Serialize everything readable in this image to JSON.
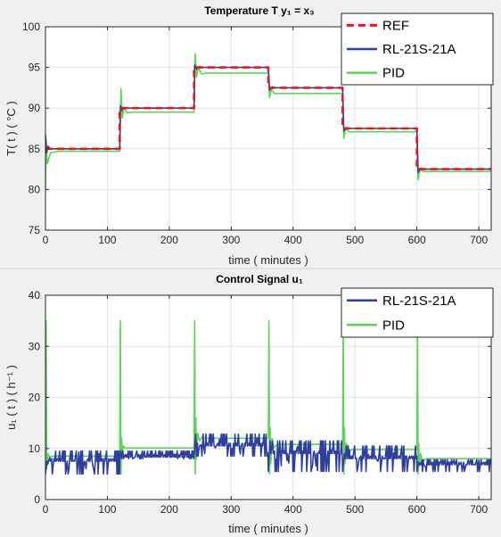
{
  "chart_data": [
    {
      "type": "line",
      "title": "Temperature T  y₁ = x₃",
      "xlabel": "time ( minutes )",
      "ylabel": "T( t ) ( °C )",
      "xlim": [
        0,
        720
      ],
      "ylim": [
        75,
        100
      ],
      "xticks": [
        0,
        100,
        200,
        300,
        400,
        500,
        600,
        700
      ],
      "yticks": [
        75,
        80,
        85,
        90,
        95,
        100
      ],
      "grid": true,
      "legend_position": "top-right",
      "series": [
        {
          "name": "REF",
          "color": "#e8191b",
          "style": "dashed",
          "x": [
            0,
            120,
            120,
            240,
            240,
            360,
            360,
            480,
            480,
            600,
            600,
            720
          ],
          "y": [
            85,
            85,
            90,
            90,
            95,
            95,
            92.5,
            92.5,
            87.5,
            87.5,
            82.5,
            82.5
          ]
        },
        {
          "name": "RL-21S-21A",
          "color": "#2e3f9e",
          "style": "solid",
          "x": [
            0,
            2,
            4,
            8,
            120,
            121,
            123,
            126,
            130,
            240,
            241,
            244,
            248,
            255,
            360,
            362,
            366,
            372,
            480,
            482,
            486,
            492,
            600,
            602,
            606,
            612,
            720
          ],
          "y": [
            86.8,
            84.5,
            85.3,
            85,
            85,
            90.3,
            89.7,
            90.1,
            90,
            90,
            95.3,
            94.8,
            95.1,
            95,
            95,
            92.2,
            92.6,
            92.5,
            92.5,
            87.2,
            87.6,
            87.5,
            87.5,
            82.1,
            82.6,
            82.5,
            82.5
          ]
        },
        {
          "name": "PID",
          "color": "#5dd35a",
          "style": "solid",
          "x": [
            0,
            1,
            3,
            8,
            20,
            120,
            121,
            122,
            124,
            127,
            132,
            140,
            240,
            241,
            242,
            244,
            247,
            252,
            260,
            360,
            361,
            362,
            365,
            370,
            480,
            481,
            482,
            485,
            490,
            600,
            601,
            602,
            605,
            610,
            720
          ],
          "y": [
            80,
            86,
            83.2,
            84.5,
            84.7,
            84.7,
            88,
            92.4,
            88.8,
            90,
            89.4,
            89.5,
            89.5,
            93,
            96.7,
            93.8,
            95,
            94.2,
            94.3,
            94.3,
            93.1,
            91.3,
            92.3,
            91.8,
            91.8,
            88.3,
            86.3,
            87.5,
            87.1,
            87.1,
            82.7,
            81.2,
            82.5,
            82.2,
            82.2
          ]
        }
      ]
    },
    {
      "type": "line",
      "title": "Control Signal u₁",
      "xlabel": "time ( minutes )",
      "ylabel": "u₁ ( t ) ( h⁻¹ )",
      "xlim": [
        0,
        720
      ],
      "ylim": [
        0,
        40
      ],
      "xticks": [
        0,
        100,
        200,
        300,
        400,
        500,
        600,
        700
      ],
      "yticks": [
        0,
        10,
        20,
        30,
        40
      ],
      "grid": true,
      "legend_position": "top-right",
      "series": [
        {
          "name": "RL-21S-21A",
          "color": "#2e3f9e",
          "style": "solid",
          "segments": [
            {
              "x0": 0,
              "x1": 120,
              "low": 5,
              "high": 9.5,
              "base": 8,
              "seed": 3
            },
            {
              "x0": 120,
              "x1": 240,
              "low": 8,
              "high": 9.5,
              "base": 8.8,
              "seed": 7
            },
            {
              "x0": 240,
              "x1": 360,
              "low": 8.5,
              "high": 12.8,
              "base": 11,
              "seed": 11
            },
            {
              "x0": 360,
              "x1": 480,
              "low": 5.5,
              "high": 11.5,
              "base": 9.5,
              "seed": 17
            },
            {
              "x0": 480,
              "x1": 600,
              "low": 5.5,
              "high": 10.5,
              "base": 8.5,
              "seed": 23
            },
            {
              "x0": 600,
              "x1": 720,
              "low": 5.5,
              "high": 7.8,
              "base": 7.3,
              "seed": 29
            }
          ]
        },
        {
          "name": "PID",
          "color": "#5dd35a",
          "style": "solid",
          "x": [
            0,
            1,
            2,
            4,
            7,
            12,
            120,
            121,
            122,
            123,
            124,
            126,
            130,
            135,
            240,
            241,
            242,
            243,
            244,
            246,
            249,
            253,
            258,
            360,
            361,
            362,
            363,
            364,
            366,
            369,
            375,
            480,
            481,
            482,
            483,
            484,
            486,
            489,
            495,
            600,
            601,
            602,
            603,
            604,
            606,
            609,
            615,
            720
          ],
          "y": [
            5,
            35,
            6,
            9,
            8.3,
            8.5,
            8.5,
            35,
            5,
            12,
            9,
            10.5,
            10,
            10.1,
            10.1,
            35,
            5,
            16,
            8,
            13,
            11.5,
            12.3,
            12,
            12,
            35,
            5,
            14,
            7,
            12,
            10.2,
            10.8,
            10.8,
            35,
            5,
            14,
            7,
            11,
            9.2,
            9.8,
            9.8,
            34,
            5,
            11,
            6.5,
            9,
            7.5,
            8,
            8
          ]
        }
      ]
    }
  ]
}
